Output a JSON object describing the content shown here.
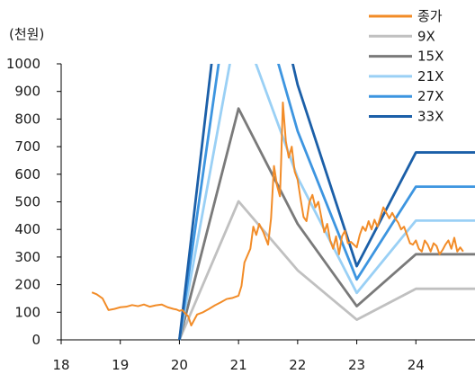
{
  "chart_data": {
    "type": "line",
    "ylabel": "(천원)",
    "ylim": [
      0,
      1000
    ],
    "xlim": [
      18,
      25
    ],
    "yticks": [
      0,
      100,
      200,
      300,
      400,
      500,
      600,
      700,
      800,
      900,
      1000
    ],
    "xticks": [
      "18",
      "19",
      "20",
      "21",
      "22",
      "23",
      "24"
    ],
    "legend_position": "top-right",
    "series": [
      {
        "name": "종가",
        "color": "#F28C28",
        "points": [
          [
            18.52,
            172
          ],
          [
            18.6,
            165
          ],
          [
            18.7,
            150
          ],
          [
            18.8,
            108
          ],
          [
            18.9,
            112
          ],
          [
            19.0,
            118
          ],
          [
            19.1,
            120
          ],
          [
            19.2,
            126
          ],
          [
            19.3,
            122
          ],
          [
            19.4,
            128
          ],
          [
            19.5,
            120
          ],
          [
            19.6,
            125
          ],
          [
            19.7,
            128
          ],
          [
            19.8,
            118
          ],
          [
            19.9,
            112
          ],
          [
            19.95,
            110
          ],
          [
            20.0,
            105
          ],
          [
            20.05,
            108
          ],
          [
            20.1,
            95
          ],
          [
            20.15,
            85
          ],
          [
            20.2,
            52
          ],
          [
            20.25,
            72
          ],
          [
            20.3,
            92
          ],
          [
            20.4,
            100
          ],
          [
            20.5,
            112
          ],
          [
            20.6,
            125
          ],
          [
            20.7,
            136
          ],
          [
            20.8,
            148
          ],
          [
            20.9,
            152
          ],
          [
            21.0,
            160
          ],
          [
            21.05,
            195
          ],
          [
            21.1,
            280
          ],
          [
            21.2,
            330
          ],
          [
            21.25,
            410
          ],
          [
            21.3,
            380
          ],
          [
            21.35,
            420
          ],
          [
            21.42,
            390
          ],
          [
            21.5,
            345
          ],
          [
            21.55,
            440
          ],
          [
            21.6,
            630
          ],
          [
            21.65,
            560
          ],
          [
            21.7,
            520
          ],
          [
            21.72,
            640
          ],
          [
            21.75,
            860
          ],
          [
            21.8,
            720
          ],
          [
            21.85,
            660
          ],
          [
            21.9,
            700
          ],
          [
            21.95,
            610
          ],
          [
            22.0,
            580
          ],
          [
            22.05,
            510
          ],
          [
            22.1,
            445
          ],
          [
            22.15,
            430
          ],
          [
            22.2,
            500
          ],
          [
            22.25,
            525
          ],
          [
            22.3,
            480
          ],
          [
            22.35,
            500
          ],
          [
            22.4,
            445
          ],
          [
            22.45,
            390
          ],
          [
            22.5,
            420
          ],
          [
            22.55,
            360
          ],
          [
            22.6,
            330
          ],
          [
            22.65,
            375
          ],
          [
            22.7,
            310
          ],
          [
            22.75,
            375
          ],
          [
            22.8,
            395
          ],
          [
            22.85,
            350
          ],
          [
            22.9,
            355
          ],
          [
            22.95,
            345
          ],
          [
            23.0,
            335
          ],
          [
            23.05,
            380
          ],
          [
            23.1,
            410
          ],
          [
            23.15,
            395
          ],
          [
            23.2,
            430
          ],
          [
            23.25,
            400
          ],
          [
            23.3,
            435
          ],
          [
            23.35,
            410
          ],
          [
            23.4,
            445
          ],
          [
            23.45,
            480
          ],
          [
            23.5,
            460
          ],
          [
            23.55,
            440
          ],
          [
            23.6,
            460
          ],
          [
            23.65,
            440
          ],
          [
            23.7,
            425
          ],
          [
            23.75,
            400
          ],
          [
            23.8,
            410
          ],
          [
            23.85,
            380
          ],
          [
            23.9,
            350
          ],
          [
            23.95,
            345
          ],
          [
            24.0,
            360
          ],
          [
            24.05,
            330
          ],
          [
            24.1,
            320
          ],
          [
            24.15,
            360
          ],
          [
            24.2,
            345
          ],
          [
            24.25,
            320
          ],
          [
            24.3,
            350
          ],
          [
            24.35,
            340
          ],
          [
            24.4,
            310
          ],
          [
            24.45,
            325
          ],
          [
            24.5,
            345
          ],
          [
            24.55,
            360
          ],
          [
            24.6,
            330
          ],
          [
            24.65,
            370
          ],
          [
            24.7,
            320
          ],
          [
            24.75,
            335
          ],
          [
            24.8,
            320
          ]
        ]
      },
      {
        "name": "9X",
        "color": "#C0C0C0",
        "points": [
          [
            20.0,
            0
          ],
          [
            21.0,
            502
          ],
          [
            22.0,
            252
          ],
          [
            23.0,
            73
          ],
          [
            24.0,
            185
          ],
          [
            25.0,
            185
          ]
        ]
      },
      {
        "name": "15X",
        "color": "#7A7A7A",
        "points": [
          [
            20.0,
            0
          ],
          [
            21.0,
            838
          ],
          [
            22.0,
            420
          ],
          [
            23.0,
            122
          ],
          [
            24.0,
            310
          ],
          [
            25.0,
            310
          ]
        ]
      },
      {
        "name": "21X",
        "color": "#9AD0F5",
        "points": [
          [
            20.0,
            0
          ],
          [
            21.0,
            1172
          ],
          [
            22.0,
            588
          ],
          [
            23.0,
            170
          ],
          [
            24.0,
            432
          ],
          [
            25.0,
            432
          ]
        ]
      },
      {
        "name": "27X",
        "color": "#3D95E0",
        "points": [
          [
            20.0,
            0
          ],
          [
            21.0,
            1507
          ],
          [
            22.0,
            756
          ],
          [
            23.0,
            219
          ],
          [
            24.0,
            555
          ],
          [
            25.0,
            555
          ]
        ]
      },
      {
        "name": "33X",
        "color": "#1B5FA8",
        "points": [
          [
            20.0,
            0
          ],
          [
            21.0,
            1842
          ],
          [
            22.0,
            924
          ],
          [
            23.0,
            267
          ],
          [
            24.0,
            679
          ],
          [
            25.0,
            679
          ]
        ]
      }
    ]
  }
}
